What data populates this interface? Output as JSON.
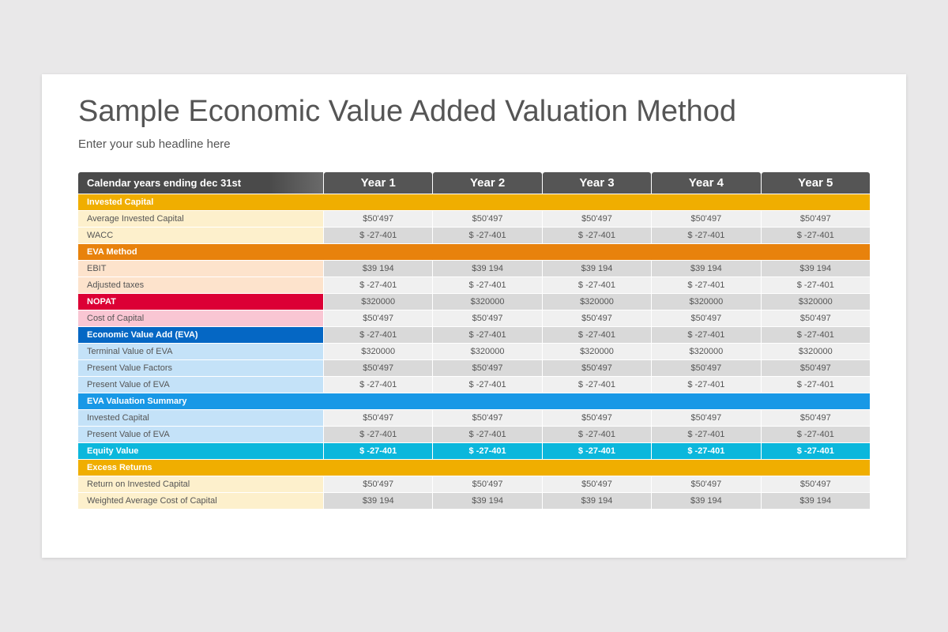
{
  "title": "Sample Economic Value Added Valuation Method",
  "subtitle": "Enter your sub headline here",
  "table": {
    "header": [
      "Calendar years ending dec 31st",
      "Year 1",
      "Year 2",
      "Year 3",
      "Year 4",
      "Year 5"
    ],
    "rows": [
      {
        "label": "Invested Capital"
      },
      {
        "label": "Average Invested Capital",
        "values": [
          "$50'497",
          "$50'497",
          "$50'497",
          "$50'497",
          "$50'497"
        ]
      },
      {
        "label": "WACC",
        "values": [
          "$ -27-401",
          "$ -27-401",
          "$ -27-401",
          "$ -27-401",
          "$ -27-401"
        ]
      },
      {
        "label": "EVA Method"
      },
      {
        "label": "EBIT",
        "values": [
          "$39 194",
          "$39 194",
          "$39 194",
          "$39 194",
          "$39 194"
        ]
      },
      {
        "label": "Adjusted taxes",
        "values": [
          "$ -27-401",
          "$ -27-401",
          "$ -27-401",
          "$ -27-401",
          "$ -27-401"
        ]
      },
      {
        "label": "NOPAT",
        "values": [
          "$320000",
          "$320000",
          "$320000",
          "$320000",
          "$320000"
        ]
      },
      {
        "label": "Cost of Capital",
        "values": [
          "$50'497",
          "$50'497",
          "$50'497",
          "$50'497",
          "$50'497"
        ]
      },
      {
        "label": "Economic Value Add (EVA)",
        "values": [
          "$ -27-401",
          "$ -27-401",
          "$ -27-401",
          "$ -27-401",
          "$ -27-401"
        ]
      },
      {
        "label": "Terminal Value of EVA",
        "values": [
          "$320000",
          "$320000",
          "$320000",
          "$320000",
          "$320000"
        ]
      },
      {
        "label": "Present Value Factors",
        "values": [
          "$50'497",
          "$50'497",
          "$50'497",
          "$50'497",
          "$50'497"
        ]
      },
      {
        "label": "Present Value of EVA",
        "values": [
          "$ -27-401",
          "$ -27-401",
          "$ -27-401",
          "$ -27-401",
          "$ -27-401"
        ]
      },
      {
        "label": "EVA Valuation Summary"
      },
      {
        "label": "Invested Capital",
        "values": [
          "$50'497",
          "$50'497",
          "$50'497",
          "$50'497",
          "$50'497"
        ]
      },
      {
        "label": "Present Value of EVA",
        "values": [
          "$ -27-401",
          "$ -27-401",
          "$ -27-401",
          "$ -27-401",
          "$ -27-401"
        ]
      },
      {
        "label": "Equity Value",
        "values": [
          "$ -27-401",
          "$ -27-401",
          "$ -27-401",
          "$ -27-401",
          "$ -27-401"
        ]
      },
      {
        "label": "Excess Returns"
      },
      {
        "label": "Return on Invested Capital",
        "values": [
          "$50'497",
          "$50'497",
          "$50'497",
          "$50'497",
          "$50'497"
        ]
      },
      {
        "label": "Weighted Average Cost of Capital",
        "values": [
          "$39 194",
          "$39 194",
          "$39 194",
          "$39 194",
          "$39 194"
        ]
      }
    ]
  }
}
